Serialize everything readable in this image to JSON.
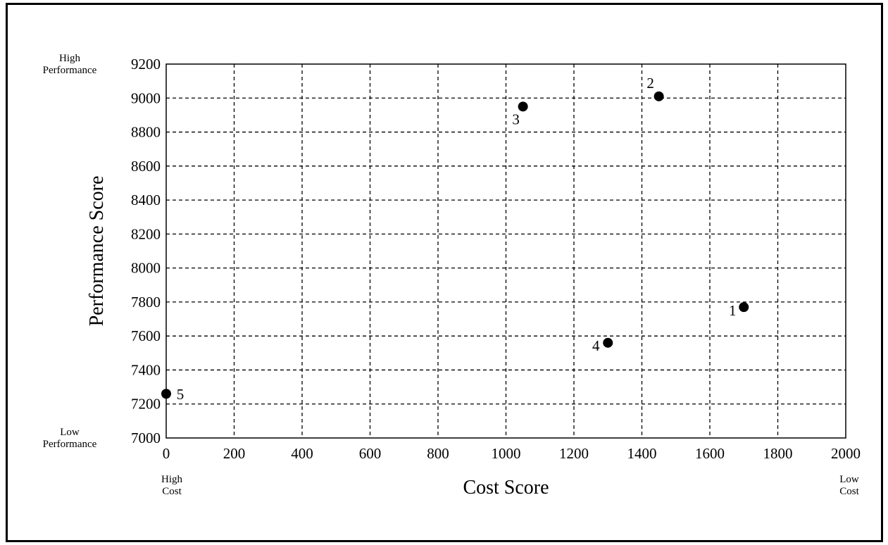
{
  "chart_data": {
    "type": "scatter",
    "xlabel": "Cost Score",
    "ylabel": "Performance Score",
    "xlim": [
      0,
      2000
    ],
    "ylim": [
      7000,
      9200
    ],
    "x_ticks": [
      0,
      200,
      400,
      600,
      800,
      1000,
      1200,
      1400,
      1600,
      1800,
      2000
    ],
    "y_ticks": [
      7000,
      7200,
      7400,
      7600,
      7800,
      8000,
      8200,
      8400,
      8600,
      8800,
      9000,
      9200
    ],
    "grid": true,
    "points": [
      {
        "label": "1",
        "x": 1700,
        "y": 7770
      },
      {
        "label": "2",
        "x": 1450,
        "y": 9010
      },
      {
        "label": "3",
        "x": 1050,
        "y": 8950
      },
      {
        "label": "4",
        "x": 1300,
        "y": 7560
      },
      {
        "label": "5",
        "x": 0,
        "y": 7260
      }
    ],
    "corner_labels": {
      "y_top": [
        "High",
        "Performance"
      ],
      "y_bottom": [
        "Low",
        "Performance"
      ],
      "x_left": [
        "High",
        "Cost"
      ],
      "x_right": [
        "Low",
        "Cost"
      ]
    },
    "marker_color": "#000000"
  }
}
